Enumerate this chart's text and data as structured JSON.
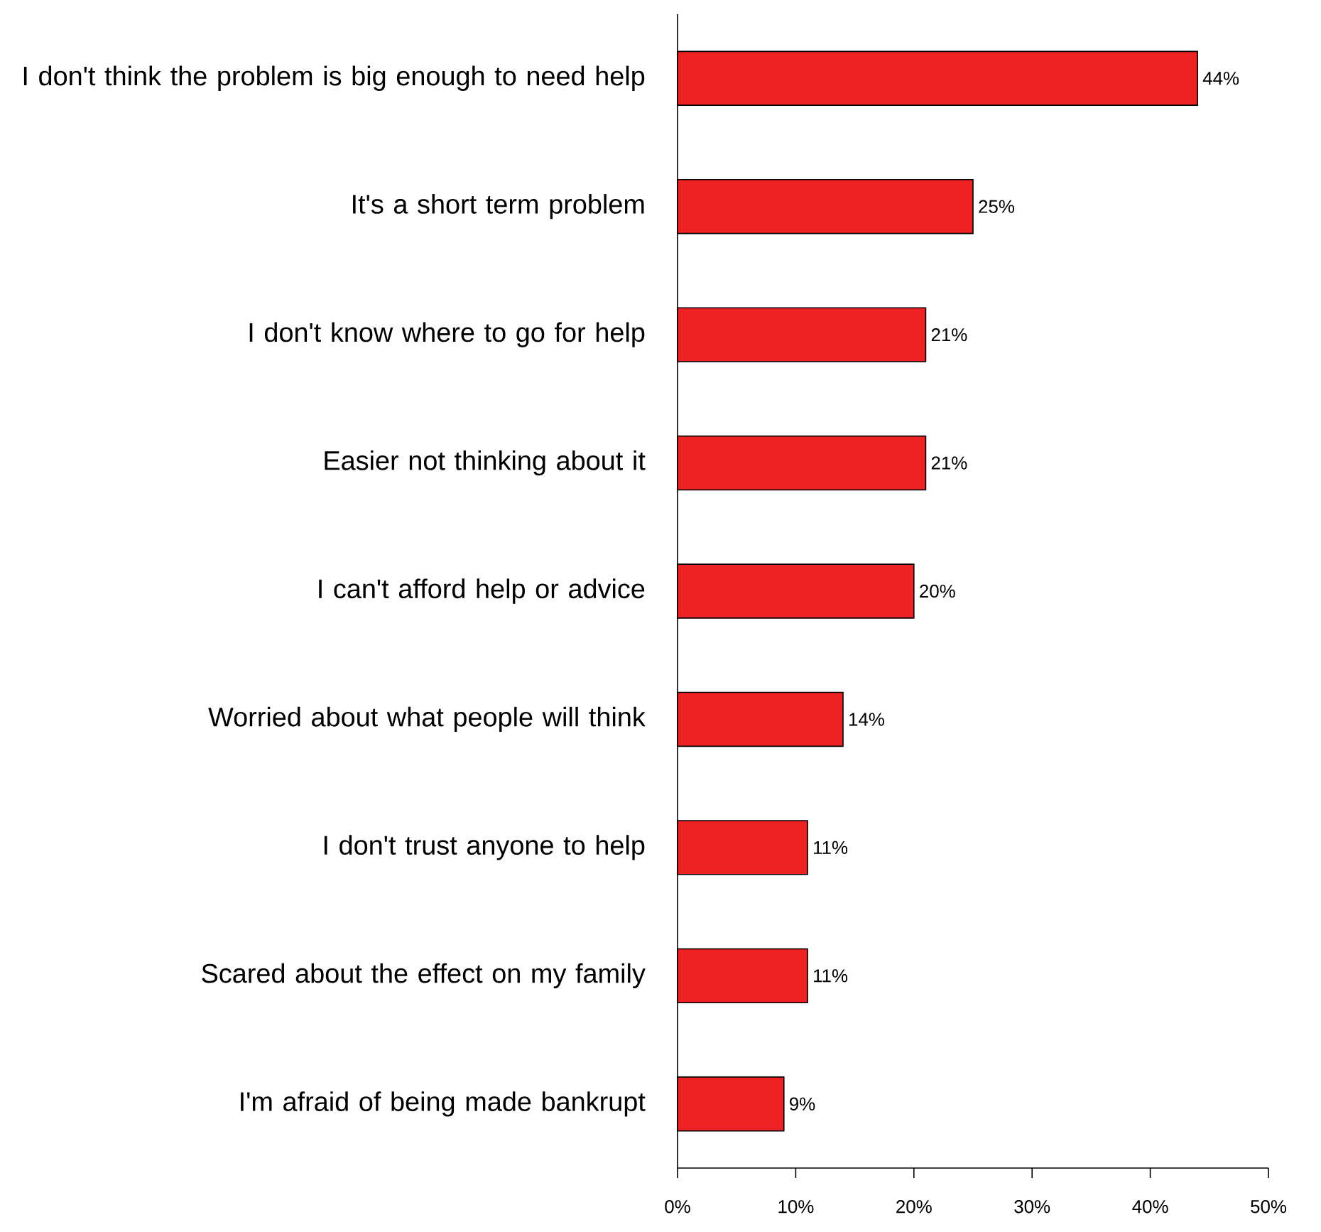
{
  "chart_data": {
    "type": "bar",
    "orientation": "horizontal",
    "categories": [
      "I don't think the problem is big enough to need help",
      "It's a short term problem",
      "I don't know where to go for help",
      "Easier not thinking about it",
      "I can't afford help or advice",
      "Worried about what people will think",
      "I don't trust anyone to help",
      "Scared about the effect on my family",
      "I'm afraid of being made bankrupt"
    ],
    "values": [
      44,
      25,
      21,
      21,
      20,
      14,
      11,
      11,
      9
    ],
    "value_labels": [
      "44%",
      "25%",
      "21%",
      "21%",
      "20%",
      "14%",
      "11%",
      "11%",
      "9%"
    ],
    "color": "#ee2222",
    "xlim": [
      0,
      50
    ],
    "xticks": [
      {
        "value": 0,
        "label": "0%"
      },
      {
        "value": 10,
        "label": "10%"
      },
      {
        "value": 20,
        "label": "20%"
      },
      {
        "value": 30,
        "label": "30%"
      },
      {
        "value": 40,
        "label": "40%"
      },
      {
        "value": 50,
        "label": "50%"
      }
    ]
  }
}
